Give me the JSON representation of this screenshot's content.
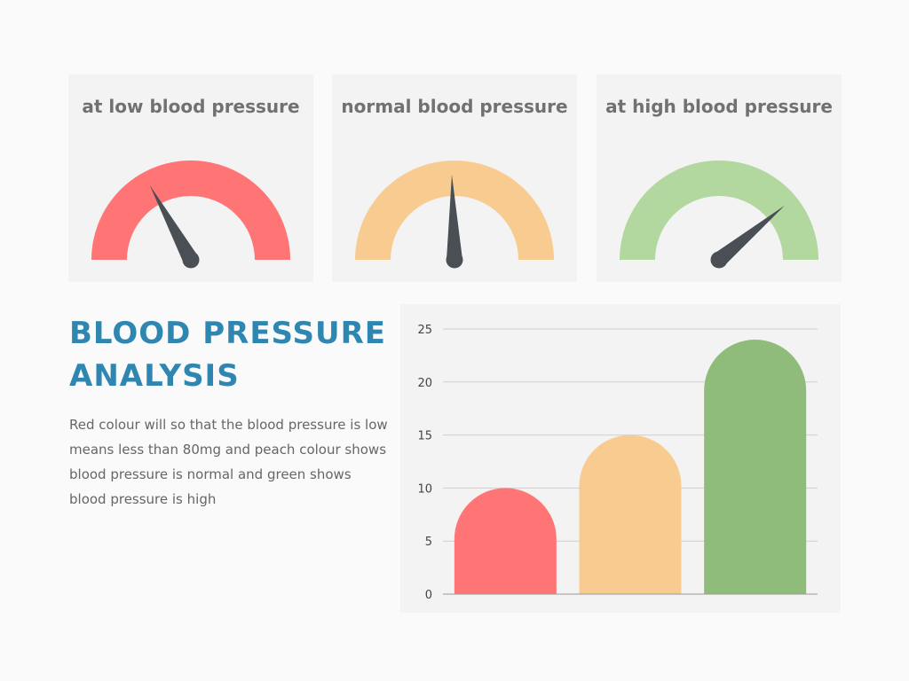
{
  "gauges": [
    {
      "title": "at low blood pressure",
      "color": "#ff7575",
      "needle_fraction": 0.34
    },
    {
      "title": "normal blood pressure",
      "color": "#f8cc90",
      "needle_fraction": 0.49
    },
    {
      "title": "at high blood pressure",
      "color": "#b2d89f",
      "needle_fraction": 0.78
    }
  ],
  "needle_color": "#4a4f55",
  "heading": "BLOOD PRESSURE ANALYSIS",
  "description": "Red colour will so that the blood pressure is low means less than 80mg and peach colour shows blood pressure is normal and green shows blood pressure is high",
  "chart_data": {
    "type": "bar",
    "categories": [
      "",
      "",
      ""
    ],
    "values": [
      10,
      15,
      24
    ],
    "colors": [
      "#ff7575",
      "#f8cc90",
      "#8fbc7a"
    ],
    "ylim": [
      0,
      25
    ],
    "yticks": [
      0,
      5,
      10,
      15,
      20,
      25
    ],
    "grid": true,
    "title": "",
    "xlabel": "",
    "ylabel": ""
  }
}
